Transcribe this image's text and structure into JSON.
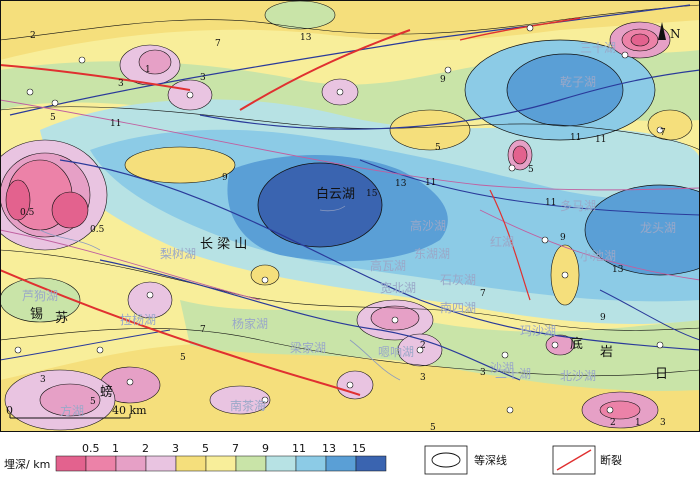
{
  "map": {
    "north_label": "N",
    "scale": {
      "start": "0",
      "end": "40 km"
    },
    "place_labels": [
      {
        "text": "白云湖",
        "kind": "dark"
      },
      {
        "text": "长 梁 山",
        "kind": "dark"
      },
      {
        "text": "乾子湖",
        "kind": "hydro"
      },
      {
        "text": "三十湖",
        "kind": "hydro"
      },
      {
        "text": "多马湖",
        "kind": "hydro"
      },
      {
        "text": "龙头湖",
        "kind": "hydro"
      },
      {
        "text": "高沙湖",
        "kind": "hydro"
      },
      {
        "text": "红湖",
        "kind": "hydro"
      },
      {
        "text": "梨树湖",
        "kind": "hydro"
      },
      {
        "text": "高瓦湖",
        "kind": "hydro"
      },
      {
        "text": "东湖湖",
        "kind": "hydro"
      },
      {
        "text": "石灰湖",
        "kind": "hydro"
      },
      {
        "text": "宽北湖",
        "kind": "hydro"
      },
      {
        "text": "杨家湖",
        "kind": "hydro"
      },
      {
        "text": "南四湖",
        "kind": "hydro"
      },
      {
        "text": "拉杨湖",
        "kind": "hydro"
      },
      {
        "text": "芦狗湖",
        "kind": "hydro"
      },
      {
        "text": "梁家湖",
        "kind": "hydro"
      },
      {
        "text": "嗯响湖",
        "kind": "hydro"
      },
      {
        "text": "玛沙湖",
        "kind": "hydro"
      },
      {
        "text": "小池湖",
        "kind": "hydro"
      },
      {
        "text": "北沙湖",
        "kind": "hydro"
      },
      {
        "text": "二十湖",
        "kind": "hydro"
      },
      {
        "text": "沙湖",
        "kind": "hydro"
      },
      {
        "text": "方湖",
        "kind": "hydro"
      },
      {
        "text": "南茶海",
        "kind": "hydro"
      },
      {
        "text": "螃",
        "kind": "dark"
      },
      {
        "text": "锡",
        "kind": "dark"
      },
      {
        "text": "苏",
        "kind": "dark"
      },
      {
        "text": "底",
        "kind": "dark"
      },
      {
        "text": "岩",
        "kind": "dark"
      },
      {
        "text": "日",
        "kind": "dark"
      }
    ],
    "contour_labels": [
      "15",
      "13",
      "11",
      "11",
      "11",
      "9",
      "9",
      "7",
      "7",
      "5",
      "5",
      "5",
      "3",
      "3",
      "3",
      "2",
      "2",
      "1",
      "0.5",
      "0.5",
      "13",
      "11",
      "9",
      "7",
      "5",
      "3",
      "2",
      "1",
      "3",
      "5",
      "7",
      "9",
      "11",
      "13",
      "5",
      "3"
    ]
  },
  "legend": {
    "title": "埋深/ km",
    "classes": [
      {
        "label": "0.5",
        "color": "#e3628e"
      },
      {
        "label": "1",
        "color": "#ec82a8"
      },
      {
        "label": "2",
        "color": "#e6a0c6"
      },
      {
        "label": "3",
        "color": "#e9c4e1"
      },
      {
        "label": "5",
        "color": "#f5df7c"
      },
      {
        "label": "7",
        "color": "#f8ee9a"
      },
      {
        "label": "9",
        "color": "#c9e4a8"
      },
      {
        "label": "11",
        "color": "#b7e2e4"
      },
      {
        "label": "13",
        "color": "#8ccbe6"
      },
      {
        "label": "15",
        "color": "#5a9fd6"
      },
      {
        "label": "",
        "color": "#3a64b0"
      }
    ],
    "contour_item": "等深线",
    "fault_item": "断裂"
  },
  "colors": {
    "fault": "#e03030",
    "isoline": "#1a1a1a",
    "blue_line": "#2a3a9a",
    "pink_line": "#c060a0"
  }
}
